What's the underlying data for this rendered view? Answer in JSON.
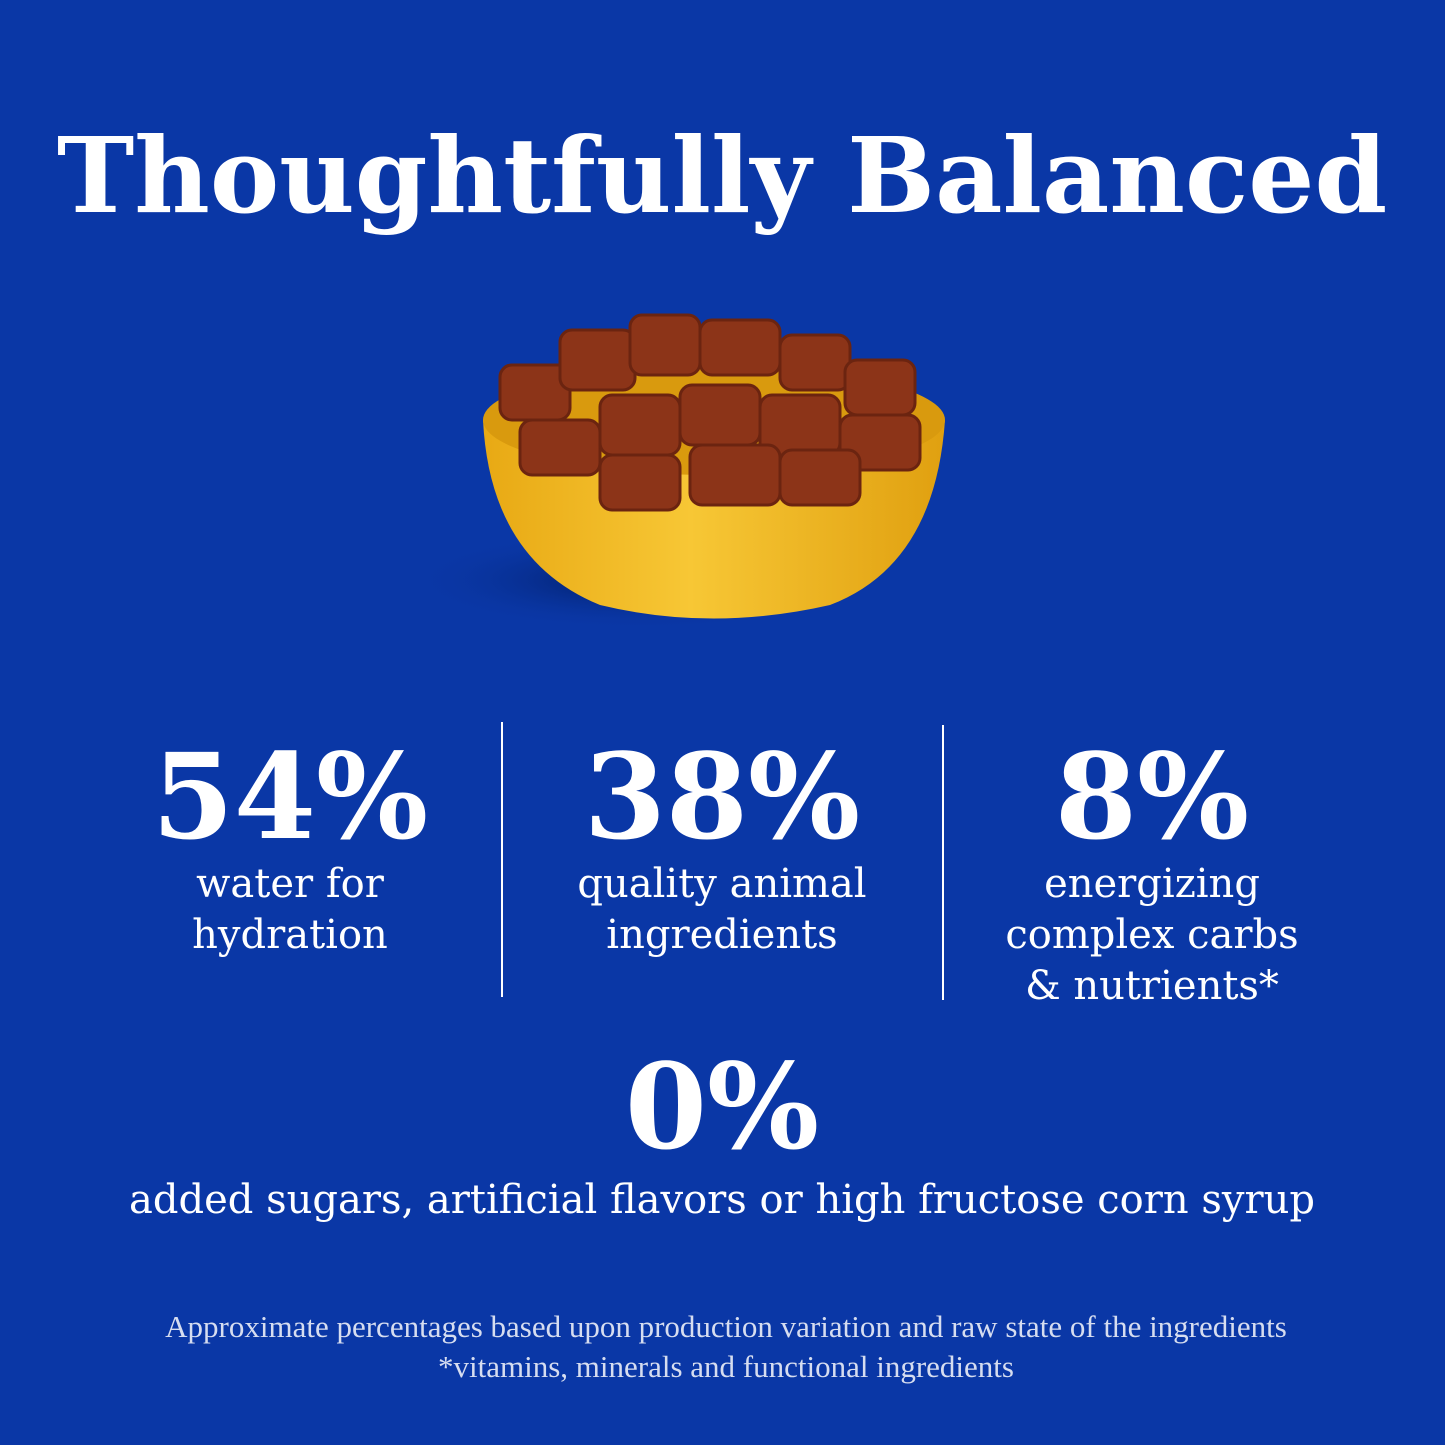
{
  "header": {
    "title": "Thoughtfully Balanced"
  },
  "stats": [
    {
      "value": "54%",
      "lines": [
        "water for",
        "hydration"
      ]
    },
    {
      "value": "38%",
      "lines": [
        "quality animal",
        "ingredients"
      ]
    },
    {
      "value": "8%",
      "lines": [
        "energizing",
        "complex carbs",
        "& nutrients*"
      ]
    }
  ],
  "highlight": {
    "value": "0%",
    "text": "added sugars, artificial flavors or high fructose corn syrup"
  },
  "footnotes": [
    "Approximate percentages based upon production variation and raw state of the ingredients",
    "*vitamins, minerals and functional ingredients"
  ]
}
